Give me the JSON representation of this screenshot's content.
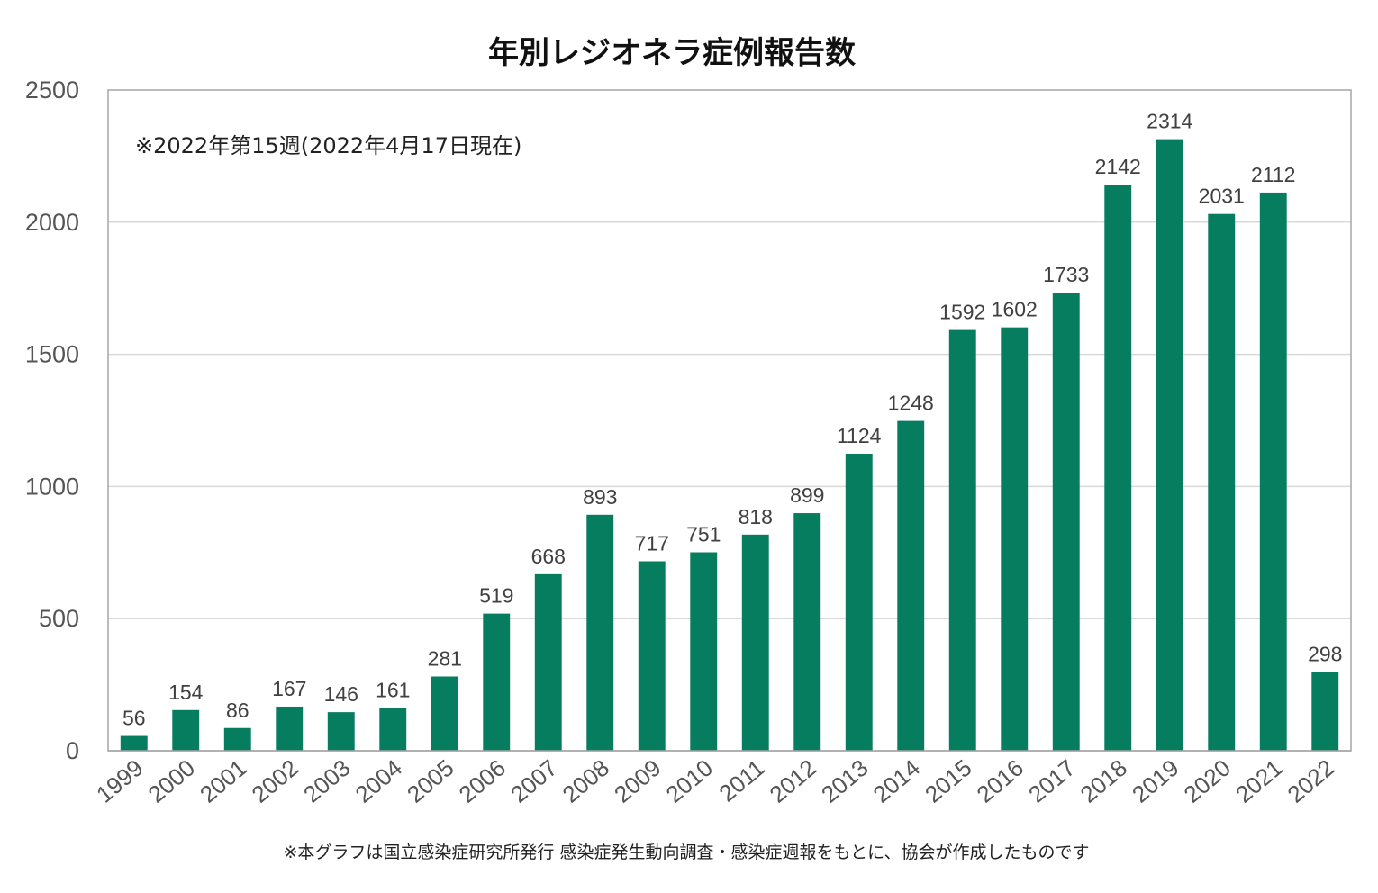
{
  "chart_data": {
    "type": "bar",
    "title": "年別レジオネラ症例報告数",
    "annotation": "※2022年第15週(2022年4月17日現在)",
    "footnote": "※本グラフは国立感染症研究所発行 感染症発生動向調査・感染症週報をもとに、協会が作成したものです",
    "categories": [
      "1999",
      "2000",
      "2001",
      "2002",
      "2003",
      "2004",
      "2005",
      "2006",
      "2007",
      "2008",
      "2009",
      "2010",
      "2011",
      "2012",
      "2013",
      "2014",
      "2015",
      "2016",
      "2017",
      "2018",
      "2019",
      "2020",
      "2021",
      "2022"
    ],
    "values": [
      56,
      154,
      86,
      167,
      146,
      161,
      281,
      519,
      668,
      893,
      717,
      751,
      818,
      899,
      1124,
      1248,
      1592,
      1602,
      1733,
      2142,
      2314,
      2031,
      2112,
      298
    ],
    "ylim": [
      0,
      2500
    ],
    "yticks": [
      0,
      500,
      1000,
      1500,
      2000,
      2500
    ],
    "xlabel": "",
    "ylabel": "",
    "grid": true,
    "legend": "none",
    "bar_color": "#067d5e"
  }
}
